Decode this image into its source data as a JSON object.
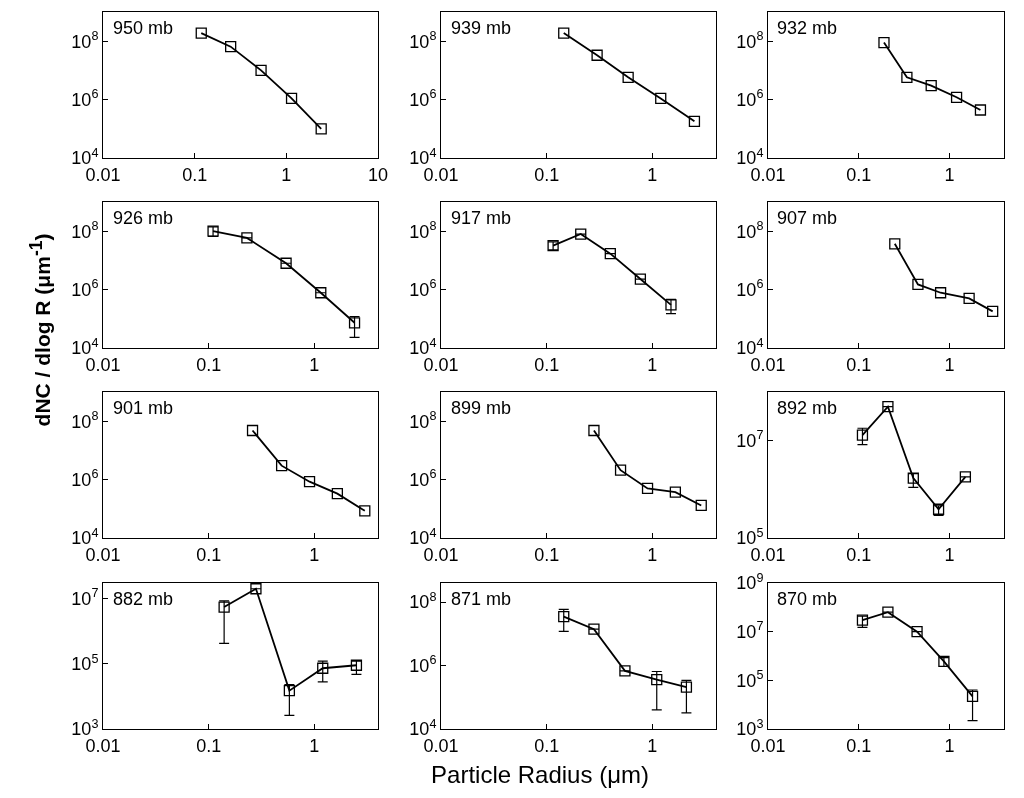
{
  "chart_data": [
    {
      "type": "line",
      "annotations": [
        "950 mb"
      ],
      "x": [
        0.118,
        0.247,
        0.53,
        1.14,
        2.4
      ],
      "values": [
        190000000.0,
        65000000.0,
        10000000.0,
        1100000.0,
        100000.0
      ],
      "xlim": [
        0.01,
        10
      ],
      "xticks": [
        0.01,
        0.1,
        1,
        10
      ],
      "ylim": [
        10000.0,
        1000000000.0
      ],
      "yticks": [
        {
          "value": 10000.0,
          "label": "10$^{4}$"
        },
        {
          "value": 1000000.0,
          "label": "10$^{6}$"
        },
        {
          "value": 100000000.0,
          "label": "10$^{8}$"
        }
      ],
      "log": "xy",
      "marker": "square",
      "color": "#000000"
    },
    {
      "type": "line",
      "annotations": [
        "939 mb"
      ],
      "x": [
        0.145,
        0.3,
        0.59,
        1.2,
        2.5
      ],
      "values": [
        190000000.0,
        33000000.0,
        5800000.0,
        1100000.0,
        180000.0
      ],
      "xlim": [
        0.01,
        4
      ],
      "xticks": [
        0.01,
        0.1,
        1
      ],
      "ylim": [
        10000.0,
        1000000000.0
      ],
      "yticks": [
        {
          "value": 10000.0,
          "label": "10$^{4}$"
        },
        {
          "value": 1000000.0,
          "label": "10$^{6}$"
        },
        {
          "value": 100000000.0,
          "label": "10$^{8}$"
        }
      ],
      "log": "xy",
      "marker": "square",
      "color": "#000000"
    },
    {
      "type": "line",
      "annotations": [
        "932 mb"
      ],
      "x": [
        0.19,
        0.34,
        0.63,
        1.2,
        2.2
      ],
      "values": [
        90000000.0,
        5800000.0,
        3000000.0,
        1200000.0,
        440000.0
      ],
      "xlim": [
        0.01,
        4
      ],
      "xticks": [
        0.01,
        0.1,
        1
      ],
      "ylim": [
        10000.0,
        1000000000.0
      ],
      "yticks": [
        {
          "value": 10000.0,
          "label": "10$^{4}$"
        },
        {
          "value": 1000000.0,
          "label": "10$^{6}$"
        },
        {
          "value": 100000000.0,
          "label": "10$^{8}$"
        }
      ],
      "log": "xy",
      "marker": "square",
      "color": "#000000"
    },
    {
      "type": "line",
      "annotations": [
        "926 mb"
      ],
      "ylabel": "dNC / dlog R (μm$^{-1}$)",
      "x": [
        0.11,
        0.23,
        0.54,
        1.15,
        2.4
      ],
      "values": [
        100000000.0,
        59000000.0,
        8000000.0,
        780000.0,
        73000.0
      ],
      "errors": [
        [
          66000000.0,
          140000000.0
        ],
        null,
        null,
        null,
        [
          23000.0,
          120000.0
        ]
      ],
      "xlim": [
        0.01,
        4
      ],
      "xticks": [
        0.01,
        0.1,
        1
      ],
      "ylim": [
        10000.0,
        1000000000.0
      ],
      "yticks": [
        {
          "value": 10000.0,
          "label": "10$^{4}$"
        },
        {
          "value": 1000000.0,
          "label": "10$^{6}$"
        },
        {
          "value": 100000000.0,
          "label": "10$^{8}$"
        }
      ],
      "log": "xy",
      "marker": "square",
      "color": "#000000"
    },
    {
      "type": "line",
      "annotations": [
        "917 mb"
      ],
      "x": [
        0.115,
        0.21,
        0.4,
        0.77,
        1.5
      ],
      "values": [
        32000000.0,
        80000000.0,
        17000000.0,
        2300000.0,
        300000.0
      ],
      "errors": [
        [
          23000000.0,
          43000000.0
        ],
        null,
        null,
        null,
        [
          150000.0,
          460000.0
        ]
      ],
      "xlim": [
        0.01,
        4
      ],
      "xticks": [
        0.01,
        0.1,
        1
      ],
      "ylim": [
        10000.0,
        1000000000.0
      ],
      "yticks": [
        {
          "value": 10000.0,
          "label": "10$^{4}$"
        },
        {
          "value": 1000000.0,
          "label": "10$^{6}$"
        },
        {
          "value": 100000000.0,
          "label": "10$^{8}$"
        }
      ],
      "log": "xy",
      "marker": "square",
      "color": "#000000"
    },
    {
      "type": "line",
      "annotations": [
        "907 mb"
      ],
      "x": [
        0.25,
        0.45,
        0.8,
        1.65,
        3.0
      ],
      "values": [
        37000000.0,
        1500000.0,
        780000.0,
        500000.0,
        180000.0
      ],
      "xlim": [
        0.01,
        4
      ],
      "xticks": [
        0.01,
        0.1,
        1
      ],
      "ylim": [
        10000.0,
        1000000000.0
      ],
      "yticks": [
        {
          "value": 10000.0,
          "label": "10$^{4}$"
        },
        {
          "value": 1000000.0,
          "label": "10$^{6}$"
        },
        {
          "value": 100000000.0,
          "label": "10$^{8}$"
        }
      ],
      "log": "xy",
      "marker": "square",
      "color": "#000000"
    },
    {
      "type": "line",
      "annotations": [
        "901 mb"
      ],
      "x": [
        0.26,
        0.49,
        0.9,
        1.65,
        3.0
      ],
      "values": [
        48000000.0,
        3000000.0,
        850000.0,
        330000.0,
        85000.0
      ],
      "xlim": [
        0.01,
        4
      ],
      "xticks": [
        0.01,
        0.1,
        1
      ],
      "ylim": [
        10000.0,
        1000000000.0
      ],
      "yticks": [
        {
          "value": 10000.0,
          "label": "10$^{4}$"
        },
        {
          "value": 1000000.0,
          "label": "10$^{6}$"
        },
        {
          "value": 100000000.0,
          "label": "10$^{8}$"
        }
      ],
      "log": "xy",
      "marker": "square",
      "color": "#000000"
    },
    {
      "type": "line",
      "annotations": [
        "899 mb"
      ],
      "x": [
        0.28,
        0.5,
        0.9,
        1.65,
        2.9
      ],
      "values": [
        48000000.0,
        2100000.0,
        500000.0,
        370000.0,
        130000.0
      ],
      "xlim": [
        0.01,
        4
      ],
      "xticks": [
        0.01,
        0.1,
        1
      ],
      "ylim": [
        10000.0,
        1000000000.0
      ],
      "yticks": [
        {
          "value": 10000.0,
          "label": "10$^{4}$"
        },
        {
          "value": 1000000.0,
          "label": "10$^{6}$"
        },
        {
          "value": 100000000.0,
          "label": "10$^{8}$"
        }
      ],
      "log": "xy",
      "marker": "square",
      "color": "#000000"
    },
    {
      "type": "line",
      "annotations": [
        "892 mb"
      ],
      "x": [
        0.11,
        0.21,
        0.4,
        0.76,
        1.5
      ],
      "values": [
        13000000.0,
        50000000.0,
        1700000.0,
        390000.0,
        1800000.0
      ],
      "errors": [
        [
          8300000.0,
          18000000.0
        ],
        null,
        [
          1100000.0,
          2100000.0
        ],
        [
          290000.0,
          460000.0
        ],
        null
      ],
      "xlim": [
        0.01,
        4
      ],
      "xticks": [
        0.01,
        0.1,
        1
      ],
      "ylim": [
        100000.0,
        100000000.0
      ],
      "yticks": [
        {
          "value": 100000.0,
          "label": "10$^{5}$"
        },
        {
          "value": 10000000.0,
          "label": "10$^{7}$"
        }
      ],
      "log": "xy",
      "marker": "square",
      "color": "#000000"
    },
    {
      "type": "line",
      "annotations": [
        "882 mb"
      ],
      "x": [
        0.14,
        0.28,
        0.58,
        1.2,
        2.5
      ],
      "values": [
        5500000.0,
        20000000.0,
        15000.0,
        73000.0,
        90000.0
      ],
      "errors": [
        [
          420000.0,
          8500000.0
        ],
        null,
        [
          2600.0,
          23000.0
        ],
        [
          28000.0,
          120000.0
        ],
        [
          47000.0,
          120000.0
        ]
      ],
      "xlim": [
        0.01,
        4
      ],
      "xticks": [
        0.01,
        0.1,
        1
      ],
      "ylim": [
        1000.0,
        30000000.0
      ],
      "yticks": [
        {
          "value": 1000.0,
          "label": "10$^{3}$"
        },
        {
          "value": 100000.0,
          "label": "10$^{5}$"
        },
        {
          "value": 10000000.0,
          "label": "10$^{7}$"
        }
      ],
      "log": "xy",
      "marker": "square",
      "color": "#000000"
    },
    {
      "type": "line",
      "annotations": [
        "871 mb"
      ],
      "xlabel": "Particle Radius (μm)",
      "x": [
        0.145,
        0.28,
        0.55,
        1.1,
        2.1
      ],
      "values": [
        35000000.0,
        14000000.0,
        680000.0,
        360000.0,
        210000.0
      ],
      "errors": [
        [
          12000000.0,
          59000000.0
        ],
        null,
        null,
        [
          40000.0,
          650000.0
        ],
        [
          32000.0,
          340000.0
        ]
      ],
      "xlim": [
        0.01,
        4
      ],
      "xticks": [
        0.01,
        0.1,
        1
      ],
      "ylim": [
        10000.0,
        400000000.0
      ],
      "yticks": [
        {
          "value": 10000.0,
          "label": "10$^{4}$"
        },
        {
          "value": 1000000.0,
          "label": "10$^{6}$"
        },
        {
          "value": 100000000.0,
          "label": "10$^{8}$"
        }
      ],
      "log": "xy",
      "marker": "square",
      "color": "#000000"
    },
    {
      "type": "line",
      "annotations": [
        "870 mb"
      ],
      "x": [
        0.11,
        0.21,
        0.44,
        0.87,
        1.8
      ],
      "values": [
        30000000.0,
        63000000.0,
        10000000.0,
        600000.0,
        22000.0
      ],
      "errors": [
        [
          15000000.0,
          43000000.0
        ],
        null,
        null,
        [
          370000.0,
          850000.0
        ],
        [
          2200.0,
          40000.0
        ]
      ],
      "xlim": [
        0.01,
        4
      ],
      "xticks": [
        0.01,
        0.1,
        1
      ],
      "ylim": [
        1000.0,
        1000000000.0
      ],
      "yticks": [
        {
          "value": 1000.0,
          "label": "10$^{3}$"
        },
        {
          "value": 100000.0,
          "label": "10$^{5}$"
        },
        {
          "value": 10000000.0,
          "label": "10$^{7}$"
        },
        {
          "value": 1000000000.0,
          "label": "10$^{9}$"
        }
      ],
      "log": "xy",
      "marker": "square",
      "color": "#000000"
    }
  ]
}
